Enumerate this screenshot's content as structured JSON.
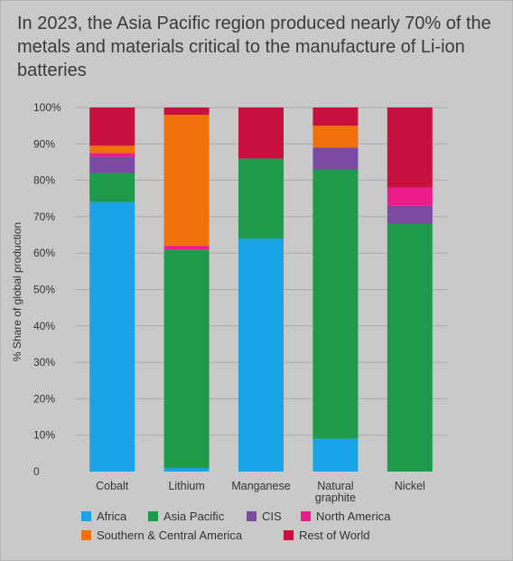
{
  "title": "In 2023, the Asia Pacific region produced nearly 70% of the metals and materials critical to the manufacture of Li-ion batteries",
  "chart_data": {
    "type": "bar",
    "stacked": true,
    "title": "In 2023, the Asia Pacific region produced nearly 70% of the metals and materials critical to the manufacture of Li-ion batteries",
    "ylabel": "% Share of global production",
    "xlabel": "",
    "ylim": [
      0,
      100
    ],
    "yticks": [
      {
        "value": 0,
        "label": "0"
      },
      {
        "value": 10,
        "label": "10%"
      },
      {
        "value": 20,
        "label": "20%"
      },
      {
        "value": 30,
        "label": "30%"
      },
      {
        "value": 40,
        "label": "40%"
      },
      {
        "value": 50,
        "label": "50%"
      },
      {
        "value": 60,
        "label": "60%"
      },
      {
        "value": 70,
        "label": "70%"
      },
      {
        "value": 80,
        "label": "80%"
      },
      {
        "value": 90,
        "label": "90%"
      },
      {
        "value": 100,
        "label": "100%"
      }
    ],
    "grid": true,
    "legend_position": "bottom",
    "categories": [
      {
        "name": "Cobalt",
        "lines": [
          "Cobalt"
        ]
      },
      {
        "name": "Lithium",
        "lines": [
          "Lithium"
        ]
      },
      {
        "name": "Manganese",
        "lines": [
          "Manganese"
        ]
      },
      {
        "name": "Natural graphite",
        "lines": [
          "Natural",
          "graphite"
        ]
      },
      {
        "name": "Nickel",
        "lines": [
          "Nickel"
        ]
      }
    ],
    "series": [
      {
        "name": "Africa",
        "color": "#1aa3e6",
        "values": [
          74,
          1,
          64,
          9,
          0
        ]
      },
      {
        "name": "Asia Pacific",
        "color": "#1f9a4a",
        "values": [
          8,
          60,
          22,
          74,
          68
        ]
      },
      {
        "name": "CIS",
        "color": "#7b4aa3",
        "values": [
          4.5,
          0,
          0,
          6,
          5
        ]
      },
      {
        "name": "North America",
        "color": "#ec1c8c",
        "values": [
          1,
          1,
          0,
          0,
          5
        ]
      },
      {
        "name": "Southern & Central America",
        "color": "#f0700a",
        "values": [
          2,
          36,
          0,
          6,
          0
        ]
      },
      {
        "name": "Rest of World",
        "color": "#c8103f",
        "values": [
          10.5,
          2,
          14,
          5,
          22
        ]
      }
    ],
    "legend_rows": [
      [
        "Africa",
        "Asia Pacific",
        "CIS",
        "North America"
      ],
      [
        "Southern & Central America",
        "Rest of World"
      ]
    ]
  }
}
